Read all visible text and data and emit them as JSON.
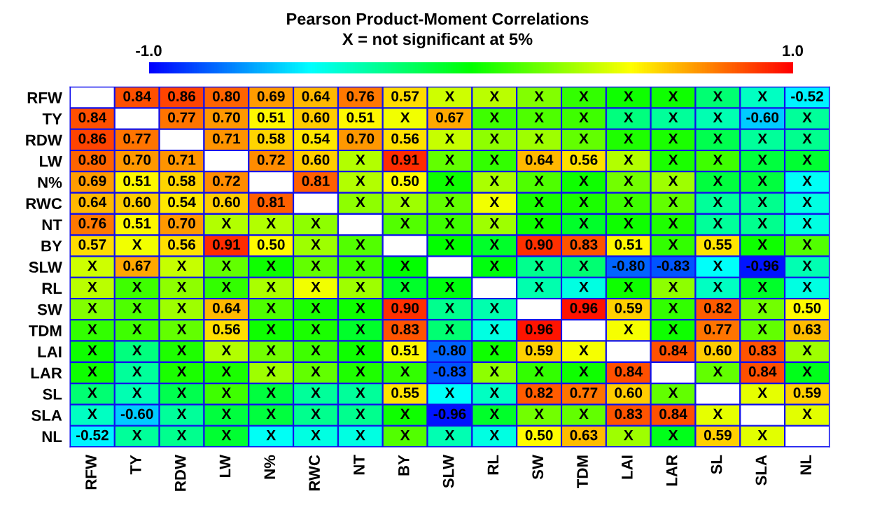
{
  "chart_data": {
    "type": "heatmap",
    "title": "Pearson Product-Moment Correlations",
    "subtitle": "X = not significant at 5%",
    "categories": [
      "RFW",
      "TY",
      "RDW",
      "LW",
      "N%",
      "RWC",
      "NT",
      "BY",
      "SLW",
      "RL",
      "SW",
      "TDM",
      "LAI",
      "LAR",
      "SL",
      "SLA",
      "NL"
    ],
    "y_categories": [
      "RFW",
      "TY",
      "RDW",
      "LW",
      "N%",
      "RWC",
      "NT",
      "BY",
      "SLW",
      "RL",
      "SW",
      "TDM",
      "LAI",
      "LAR",
      "SL",
      "SLA",
      "NL"
    ],
    "colors": [
      "#0000ff",
      "#00ffff",
      "#00ff00",
      "#ffff00",
      "#ff0000"
    ],
    "clim": [
      -1,
      1
    ],
    "cticks": [
      {
        "value": -1,
        "label": "-1.0"
      },
      {
        "value": 1,
        "label": "1.0"
      }
    ],
    "cells": [
      [
        null,
        0.84,
        0.86,
        0.8,
        0.69,
        0.64,
        0.76,
        0.57,
        0.4,
        0.36,
        0.25,
        0.1,
        0.03,
        0.03,
        -0.22,
        -0.38,
        -0.52
      ],
      [
        0.84,
        null,
        0.77,
        0.7,
        0.51,
        0.6,
        0.51,
        0.47,
        0.67,
        0.12,
        0.15,
        0.12,
        -0.25,
        -0.3,
        -0.35,
        -0.6,
        -0.3
      ],
      [
        0.86,
        0.77,
        null,
        0.71,
        0.58,
        0.54,
        0.7,
        0.56,
        0.39,
        0.28,
        0.31,
        0.19,
        0.06,
        0.05,
        -0.15,
        -0.3,
        -0.28
      ],
      [
        0.8,
        0.7,
        0.71,
        null,
        0.72,
        0.6,
        0.35,
        0.91,
        0.19,
        0.1,
        0.64,
        0.56,
        0.35,
        0.05,
        0.12,
        -0.12,
        -0.1
      ],
      [
        0.69,
        0.51,
        0.58,
        0.72,
        null,
        0.81,
        0.35,
        0.5,
        0.03,
        0.33,
        0.15,
        0.03,
        0.22,
        0.31,
        -0.12,
        -0.12,
        -0.48
      ],
      [
        0.64,
        0.6,
        0.54,
        0.6,
        0.81,
        null,
        0.28,
        0.31,
        0.19,
        0.47,
        0.05,
        0.05,
        0.12,
        0.19,
        -0.3,
        -0.28,
        -0.44
      ],
      [
        0.76,
        0.51,
        0.7,
        0.35,
        0.35,
        0.28,
        null,
        0.16,
        0.12,
        0.31,
        0.03,
        -0.08,
        0.03,
        0.06,
        -0.3,
        -0.28,
        -0.44
      ],
      [
        0.57,
        0.47,
        0.56,
        0.91,
        0.5,
        0.31,
        0.16,
        null,
        0.0,
        -0.08,
        0.9,
        0.83,
        0.51,
        0.1,
        0.55,
        0.03,
        0.16
      ],
      [
        0.4,
        0.67,
        0.39,
        0.19,
        0.03,
        0.19,
        0.12,
        0.0,
        null,
        -0.03,
        -0.28,
        -0.22,
        -0.8,
        -0.83,
        -0.49,
        -0.96,
        -0.35
      ],
      [
        0.36,
        0.12,
        0.28,
        0.1,
        0.33,
        0.47,
        0.31,
        -0.08,
        -0.03,
        null,
        -0.34,
        -0.44,
        0.03,
        0.28,
        -0.38,
        -0.08,
        -0.44
      ],
      [
        0.25,
        0.15,
        0.31,
        0.64,
        0.15,
        0.05,
        0.03,
        0.9,
        -0.28,
        -0.34,
        null,
        0.96,
        0.59,
        0.1,
        0.82,
        0.22,
        0.5
      ],
      [
        0.1,
        0.12,
        0.19,
        0.56,
        0.03,
        0.05,
        -0.08,
        0.83,
        -0.22,
        -0.44,
        0.96,
        null,
        0.48,
        0.03,
        0.77,
        0.19,
        0.63
      ],
      [
        0.03,
        -0.25,
        0.06,
        0.35,
        0.22,
        0.12,
        0.03,
        0.51,
        -0.8,
        0.03,
        0.59,
        0.48,
        null,
        0.84,
        0.6,
        0.83,
        0.31
      ],
      [
        0.03,
        -0.3,
        0.05,
        0.05,
        0.31,
        0.19,
        0.06,
        0.1,
        -0.83,
        0.28,
        0.1,
        0.03,
        0.84,
        null,
        0.19,
        0.84,
        -0.05
      ],
      [
        -0.22,
        -0.35,
        -0.15,
        0.12,
        -0.12,
        -0.3,
        -0.3,
        0.55,
        -0.49,
        -0.38,
        0.82,
        0.77,
        0.6,
        0.19,
        null,
        0.45,
        0.59
      ],
      [
        -0.38,
        -0.6,
        -0.3,
        -0.12,
        -0.12,
        -0.28,
        -0.28,
        0.03,
        -0.96,
        -0.08,
        0.22,
        0.19,
        0.83,
        0.84,
        0.45,
        null,
        0.44
      ],
      [
        -0.52,
        -0.3,
        -0.28,
        -0.1,
        -0.48,
        -0.44,
        -0.44,
        0.16,
        -0.35,
        -0.44,
        0.5,
        0.63,
        0.31,
        -0.05,
        0.59,
        0.44,
        null
      ]
    ],
    "cell_labels": [
      [
        null,
        "0.84",
        "0.86",
        "0.80",
        "0.69",
        "0.64",
        "0.76",
        "0.57",
        "X",
        "X",
        "X",
        "X",
        "X",
        "X",
        "X",
        "X",
        "-0.52"
      ],
      [
        "0.84",
        null,
        "0.77",
        "0.70",
        "0.51",
        "0.60",
        "0.51",
        "X",
        "0.67",
        "X",
        "X",
        "X",
        "X",
        "X",
        "X",
        "-0.60",
        "X"
      ],
      [
        "0.86",
        "0.77",
        null,
        "0.71",
        "0.58",
        "0.54",
        "0.70",
        "0.56",
        "X",
        "X",
        "X",
        "X",
        "X",
        "X",
        "X",
        "X",
        "X"
      ],
      [
        "0.80",
        "0.70",
        "0.71",
        null,
        "0.72",
        "0.60",
        "X",
        "0.91",
        "X",
        "X",
        "0.64",
        "0.56",
        "X",
        "X",
        "X",
        "X",
        "X"
      ],
      [
        "0.69",
        "0.51",
        "0.58",
        "0.72",
        null,
        "0.81",
        "X",
        "0.50",
        "X",
        "X",
        "X",
        "X",
        "X",
        "X",
        "X",
        "X",
        "X"
      ],
      [
        "0.64",
        "0.60",
        "0.54",
        "0.60",
        "0.81",
        null,
        "X",
        "X",
        "X",
        "X",
        "X",
        "X",
        "X",
        "X",
        "X",
        "X",
        "X"
      ],
      [
        "0.76",
        "0.51",
        "0.70",
        "X",
        "X",
        "X",
        null,
        "X",
        "X",
        "X",
        "X",
        "X",
        "X",
        "X",
        "X",
        "X",
        "X"
      ],
      [
        "0.57",
        "X",
        "0.56",
        "0.91",
        "0.50",
        "X",
        "X",
        null,
        "X",
        "X",
        "0.90",
        "0.83",
        "0.51",
        "X",
        "0.55",
        "X",
        "X"
      ],
      [
        "X",
        "0.67",
        "X",
        "X",
        "X",
        "X",
        "X",
        "X",
        null,
        "X",
        "X",
        "X",
        "-0.80",
        "-0.83",
        "X",
        "-0.96",
        "X"
      ],
      [
        "X",
        "X",
        "X",
        "X",
        "X",
        "X",
        "X",
        "X",
        "X",
        null,
        "X",
        "X",
        "X",
        "X",
        "X",
        "X",
        "X"
      ],
      [
        "X",
        "X",
        "X",
        "0.64",
        "X",
        "X",
        "X",
        "0.90",
        "X",
        "X",
        null,
        "0.96",
        "0.59",
        "X",
        "0.82",
        "X",
        "0.50"
      ],
      [
        "X",
        "X",
        "X",
        "0.56",
        "X",
        "X",
        "X",
        "0.83",
        "X",
        "X",
        "0.96",
        null,
        "X",
        "X",
        "0.77",
        "X",
        "0.63"
      ],
      [
        "X",
        "X",
        "X",
        "X",
        "X",
        "X",
        "X",
        "0.51",
        "-0.80",
        "X",
        "0.59",
        "X",
        null,
        "0.84",
        "0.60",
        "0.83",
        "X"
      ],
      [
        "X",
        "X",
        "X",
        "X",
        "X",
        "X",
        "X",
        "X",
        "-0.83",
        "X",
        "X",
        "X",
        "0.84",
        null,
        "X",
        "0.84",
        "X"
      ],
      [
        "X",
        "X",
        "X",
        "X",
        "X",
        "X",
        "X",
        "0.55",
        "X",
        "X",
        "0.82",
        "0.77",
        "0.60",
        "X",
        null,
        "X",
        "0.59"
      ],
      [
        "X",
        "-0.60",
        "X",
        "X",
        "X",
        "X",
        "X",
        "X",
        "-0.96",
        "X",
        "X",
        "X",
        "0.83",
        "0.84",
        "X",
        null,
        "X"
      ],
      [
        "-0.52",
        "X",
        "X",
        "X",
        "X",
        "X",
        "X",
        "X",
        "X",
        "X",
        "0.50",
        "0.63",
        "X",
        "X",
        "0.59",
        "X",
        null
      ]
    ]
  }
}
